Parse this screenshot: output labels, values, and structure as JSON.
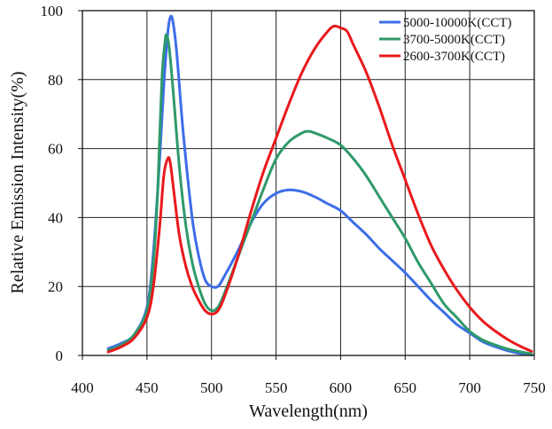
{
  "chart_data": {
    "type": "line",
    "xlabel": "Wavelength(nm)",
    "ylabel": "Relative Emission Intensity(%)",
    "xlim": [
      400,
      750
    ],
    "ylim": [
      0,
      100
    ],
    "x_ticks": [
      "400",
      "450",
      "500",
      "550",
      "600",
      "650",
      "700",
      "750"
    ],
    "y_ticks": [
      "0",
      "20",
      "40",
      "60",
      "80",
      "100"
    ],
    "grid": true,
    "legend_position": "top-right",
    "series": [
      {
        "name": "5000-10000K(CCT)",
        "color": "#3d6ee8",
        "points": [
          [
            420,
            2
          ],
          [
            430,
            3.5
          ],
          [
            440,
            6
          ],
          [
            450,
            14
          ],
          [
            455,
            30
          ],
          [
            460,
            58
          ],
          [
            463,
            78
          ],
          [
            466,
            93
          ],
          [
            468,
            98
          ],
          [
            470,
            97
          ],
          [
            473,
            88
          ],
          [
            478,
            65
          ],
          [
            485,
            40
          ],
          [
            490,
            29
          ],
          [
            495,
            22
          ],
          [
            500,
            20
          ],
          [
            505,
            20
          ],
          [
            510,
            23
          ],
          [
            520,
            30
          ],
          [
            530,
            38
          ],
          [
            540,
            44
          ],
          [
            550,
            47
          ],
          [
            560,
            48
          ],
          [
            570,
            47.5
          ],
          [
            580,
            46
          ],
          [
            590,
            44
          ],
          [
            600,
            42
          ],
          [
            610,
            38.5
          ],
          [
            620,
            35
          ],
          [
            630,
            31
          ],
          [
            640,
            27.5
          ],
          [
            650,
            24
          ],
          [
            660,
            20
          ],
          [
            670,
            16
          ],
          [
            680,
            12.5
          ],
          [
            690,
            9
          ],
          [
            700,
            6.5
          ],
          [
            710,
            4
          ],
          [
            720,
            2.5
          ],
          [
            730,
            1.3
          ],
          [
            740,
            0.5
          ],
          [
            748,
            0.2
          ]
        ]
      },
      {
        "name": "3700-5000K(CCT)",
        "color": "#2f9a6a",
        "points": [
          [
            420,
            1.5
          ],
          [
            430,
            3
          ],
          [
            440,
            6
          ],
          [
            450,
            13
          ],
          [
            455,
            27
          ],
          [
            458,
            45
          ],
          [
            460,
            65
          ],
          [
            462,
            83
          ],
          [
            464,
            91
          ],
          [
            465,
            93
          ],
          [
            467,
            90
          ],
          [
            470,
            78
          ],
          [
            475,
            55
          ],
          [
            480,
            38
          ],
          [
            485,
            27
          ],
          [
            490,
            20
          ],
          [
            495,
            15
          ],
          [
            500,
            13
          ],
          [
            505,
            14
          ],
          [
            510,
            18
          ],
          [
            520,
            28
          ],
          [
            530,
            38
          ],
          [
            540,
            48
          ],
          [
            550,
            57
          ],
          [
            560,
            62
          ],
          [
            570,
            64.5
          ],
          [
            575,
            65
          ],
          [
            580,
            64.5
          ],
          [
            590,
            63
          ],
          [
            600,
            61
          ],
          [
            610,
            57
          ],
          [
            620,
            52
          ],
          [
            630,
            46
          ],
          [
            640,
            40
          ],
          [
            650,
            34
          ],
          [
            660,
            27
          ],
          [
            670,
            21
          ],
          [
            680,
            15
          ],
          [
            690,
            11
          ],
          [
            700,
            7
          ],
          [
            710,
            4.5
          ],
          [
            720,
            3
          ],
          [
            730,
            1.8
          ],
          [
            740,
            1
          ],
          [
            748,
            0.5
          ]
        ]
      },
      {
        "name": "2600-3700K(CCT)",
        "color": "#e8191c",
        "points": [
          [
            420,
            1
          ],
          [
            430,
            2.5
          ],
          [
            440,
            5
          ],
          [
            450,
            11
          ],
          [
            455,
            20
          ],
          [
            460,
            38
          ],
          [
            463,
            52
          ],
          [
            466,
            57
          ],
          [
            468,
            56
          ],
          [
            471,
            47
          ],
          [
            475,
            35
          ],
          [
            480,
            26
          ],
          [
            485,
            20
          ],
          [
            490,
            16
          ],
          [
            495,
            13
          ],
          [
            500,
            12
          ],
          [
            505,
            13
          ],
          [
            510,
            17
          ],
          [
            520,
            28
          ],
          [
            530,
            41
          ],
          [
            540,
            53
          ],
          [
            550,
            63
          ],
          [
            560,
            73
          ],
          [
            570,
            82
          ],
          [
            580,
            89
          ],
          [
            590,
            94
          ],
          [
            595,
            95.5
          ],
          [
            600,
            95
          ],
          [
            605,
            94
          ],
          [
            610,
            90
          ],
          [
            620,
            82
          ],
          [
            630,
            72
          ],
          [
            640,
            61
          ],
          [
            650,
            51
          ],
          [
            660,
            41
          ],
          [
            670,
            32
          ],
          [
            680,
            25
          ],
          [
            690,
            19
          ],
          [
            700,
            14
          ],
          [
            710,
            10
          ],
          [
            720,
            7
          ],
          [
            730,
            4.5
          ],
          [
            740,
            2.5
          ],
          [
            748,
            1.2
          ]
        ]
      }
    ]
  }
}
